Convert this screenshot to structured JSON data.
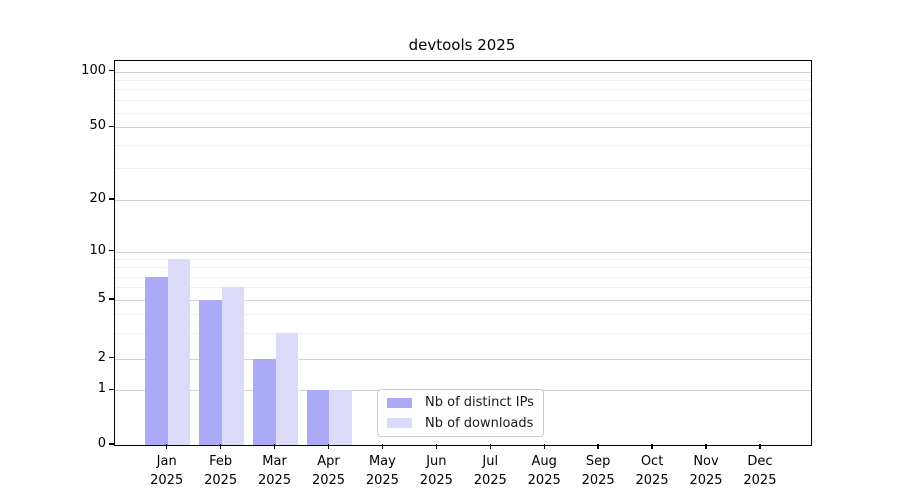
{
  "chart_data": {
    "type": "bar",
    "title": "devtools 2025",
    "categories": [
      "Jan",
      "Feb",
      "Mar",
      "Apr",
      "May",
      "Jun",
      "Jul",
      "Aug",
      "Sep",
      "Oct",
      "Nov",
      "Dec"
    ],
    "category_year": "2025",
    "series": [
      {
        "name": "Nb of distinct IPs",
        "color": "#aaaaf6",
        "values": [
          7,
          5,
          2,
          1,
          0,
          0,
          0,
          0,
          0,
          0,
          0,
          0
        ]
      },
      {
        "name": "Nb of downloads",
        "color": "#dbdbf9",
        "values": [
          9,
          6,
          3,
          1,
          0,
          0,
          0,
          0,
          0,
          0,
          0,
          0
        ]
      }
    ],
    "yscale": "symlog",
    "yticks": [
      0,
      1,
      2,
      5,
      10,
      20,
      50,
      100
    ],
    "yminor_ticks": [
      3,
      4,
      6,
      7,
      8,
      9,
      30,
      40,
      60,
      70,
      80,
      90
    ],
    "ylim": [
      0,
      110
    ],
    "xlabel": "",
    "ylabel": "",
    "grid": "horizontal major and minor gridlines",
    "legend_position": "lower center inside plot",
    "colors": {
      "grid_major": "#d2d2d2",
      "grid_minor": "#f0f0f0",
      "spine": "#000000",
      "background": "#ffffff"
    }
  }
}
